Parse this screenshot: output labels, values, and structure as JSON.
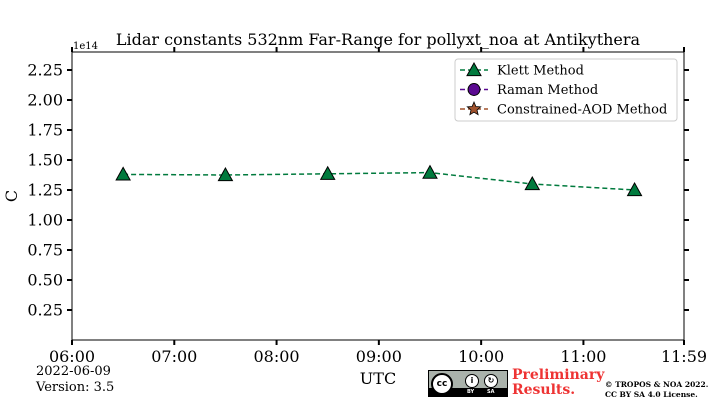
{
  "chart_data": {
    "type": "line",
    "title": "Lidar constants 532nm Far-Range for pollyxt_noa at Antikythera",
    "xlabel": "UTC",
    "ylabel": "C",
    "y_multiplier": "1e14",
    "x_ticks": [
      "06:00",
      "07:00",
      "08:00",
      "09:00",
      "10:00",
      "11:00",
      "11:59"
    ],
    "x_tick_hours": [
      6,
      7,
      8,
      9,
      10,
      11,
      11.9833
    ],
    "xlim_hours": [
      6,
      11.9833
    ],
    "y_ticks": [
      "0.25",
      "0.50",
      "0.75",
      "1.00",
      "1.25",
      "1.50",
      "1.75",
      "2.00",
      "2.25"
    ],
    "ylim": [
      0,
      2.4
    ],
    "grid": false,
    "legend_position": "top-right",
    "series": [
      {
        "name": "Klett Method",
        "color": "#007a3d",
        "marker": "triangle",
        "linestyle": "dashed",
        "x_hours": [
          6.5,
          7.5,
          8.5,
          9.5,
          10.5,
          11.5
        ],
        "x_times": [
          "06:30",
          "07:30",
          "08:30",
          "09:30",
          "10:30",
          "11:30"
        ],
        "values": [
          1.38,
          1.375,
          1.385,
          1.395,
          1.3,
          1.25
        ]
      },
      {
        "name": "Raman Method",
        "color": "#5b0a91",
        "marker": "circle",
        "linestyle": "dashed",
        "x_hours": [],
        "values": []
      },
      {
        "name": "Constrained-AOD Method",
        "color": "#a0522d",
        "marker": "star",
        "linestyle": "dashed",
        "x_hours": [],
        "values": []
      }
    ]
  },
  "footer": {
    "date": "2022-06-09",
    "version": "Version: 3.5",
    "license_cc": "cc",
    "license_by": "BY",
    "license_sa": "SA",
    "preliminary_line1": "Preliminary",
    "preliminary_line2": "Results.",
    "copyright_line1": "© TROPOS & NOA 2022.",
    "copyright_line2": "CC BY SA 4.0 License."
  }
}
